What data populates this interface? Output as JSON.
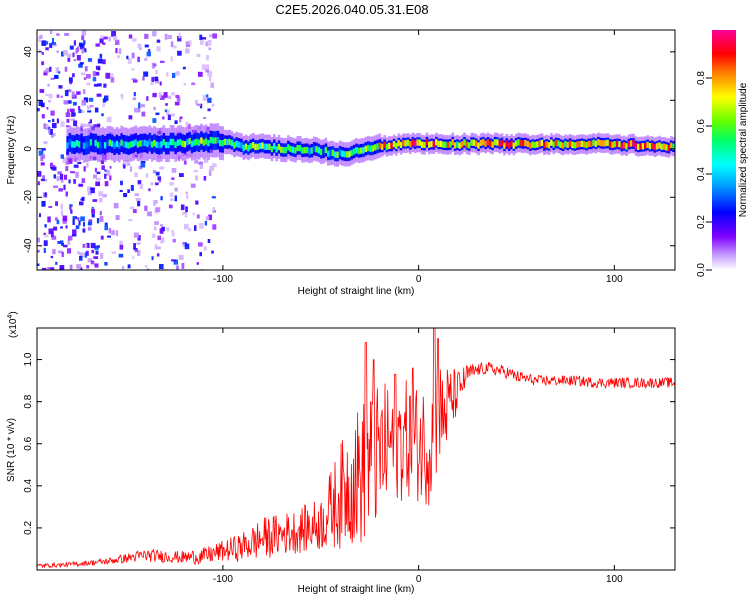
{
  "title": "C2E5.2026.040.05.31.E08",
  "chart_data": [
    {
      "type": "heatmap",
      "name": "spectrogram",
      "xlabel": "Height of straight line (km)",
      "ylabel": "Frequency (Hz)",
      "xlim": [
        -195,
        131
      ],
      "ylim": [
        -50,
        49
      ],
      "x_ticks": [
        -100,
        0,
        100
      ],
      "y_ticks": [
        -40,
        -20,
        0,
        20,
        40
      ],
      "colorbar": {
        "label": "Normalized spectral amplitude",
        "range": [
          0.0,
          1.0
        ],
        "ticks": [
          "0.0",
          "0.2",
          "0.4",
          "0.6",
          "0.8"
        ],
        "colors": [
          "#ffffff",
          "#7f00ff",
          "#0000ff",
          "#00ffff",
          "#00ff00",
          "#ffff00",
          "#ff7f00",
          "#ff0000",
          "#ff00aa"
        ]
      },
      "ridge": {
        "x": [
          -170,
          -150,
          -130,
          -110,
          -100,
          -90,
          -80,
          -70,
          -60,
          -50,
          -40,
          -30,
          -20,
          -10,
          0,
          10,
          20,
          40,
          60,
          80,
          100,
          120,
          131
        ],
        "y": [
          2,
          2,
          2,
          3,
          3,
          1,
          1,
          0,
          0,
          -1,
          -2,
          -1,
          1,
          2,
          2,
          2,
          2,
          2,
          2,
          2,
          2,
          1,
          1
        ],
        "amplitude": [
          0.4,
          0.45,
          0.5,
          0.55,
          0.5,
          0.5,
          0.55,
          0.5,
          0.5,
          0.45,
          0.5,
          0.6,
          0.7,
          0.8,
          0.85,
          0.75,
          0.7,
          0.8,
          0.75,
          0.75,
          0.8,
          0.85,
          0.7
        ]
      },
      "noise_region_x": [
        -195,
        -105
      ]
    },
    {
      "type": "line",
      "name": "snr",
      "xlabel": "Height of straight line (km)",
      "ylabel": "SNR (10 * v/v)",
      "multiplier_label": "(x10",
      "multiplier_exponent": "4",
      "multiplier_close": ")",
      "xlim": [
        -195,
        131
      ],
      "ylim": [
        0,
        1.15
      ],
      "x_ticks": [
        -100,
        0,
        100
      ],
      "y_ticks": [
        "0.2",
        "0.4",
        "0.6",
        "0.8",
        "1.0"
      ],
      "color": "#ff0000",
      "series": [
        {
          "name": "SNR",
          "x": [
            -195,
            -180,
            -160,
            -140,
            -120,
            -110,
            -100,
            -90,
            -80,
            -70,
            -60,
            -50,
            -40,
            -35,
            -30,
            -25,
            -20,
            -15,
            -10,
            -5,
            0,
            5,
            10,
            15,
            20,
            25,
            30,
            35,
            40,
            45,
            50,
            60,
            70,
            80,
            90,
            100,
            110,
            120,
            131
          ],
          "mean": [
            0.02,
            0.025,
            0.04,
            0.07,
            0.06,
            0.065,
            0.09,
            0.11,
            0.15,
            0.17,
            0.19,
            0.22,
            0.35,
            0.42,
            0.45,
            0.5,
            0.55,
            0.6,
            0.62,
            0.62,
            0.6,
            0.6,
            0.7,
            0.78,
            0.85,
            0.93,
            0.95,
            0.96,
            0.95,
            0.94,
            0.92,
            0.9,
            0.9,
            0.9,
            0.89,
            0.89,
            0.89,
            0.89,
            0.89
          ],
          "spread": [
            0.01,
            0.01,
            0.015,
            0.03,
            0.03,
            0.04,
            0.05,
            0.07,
            0.1,
            0.1,
            0.11,
            0.13,
            0.25,
            0.3,
            0.35,
            0.35,
            0.33,
            0.3,
            0.3,
            0.28,
            0.28,
            0.3,
            0.3,
            0.2,
            0.1,
            0.05,
            0.03,
            0.03,
            0.03,
            0.03,
            0.03,
            0.025,
            0.025,
            0.025,
            0.025,
            0.025,
            0.025,
            0.025,
            0.025
          ],
          "peaks": [
            [
              -27,
              1.08
            ],
            [
              -23,
              1.0
            ],
            [
              -12,
              0.93
            ],
            [
              8,
              1.15
            ],
            [
              10,
              1.1
            ],
            [
              -3,
              0.96
            ]
          ]
        }
      ]
    }
  ]
}
